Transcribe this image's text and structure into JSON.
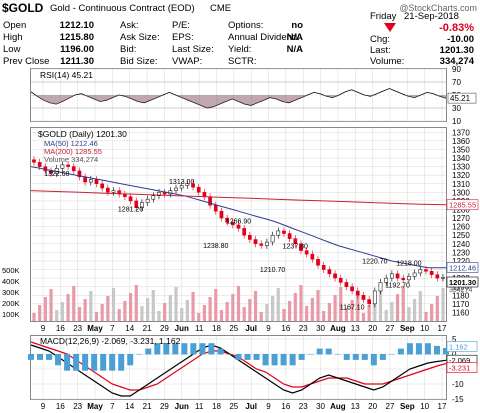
{
  "header": {
    "symbol": "$GOLD",
    "name": "Gold - Continuous Contract (EOD)",
    "exchange": "CME",
    "watermark": "@StockCharts.com",
    "date_day": "Friday",
    "date": "21-Sep-2018",
    "change_pct": "-0.83%",
    "quote_left": [
      {
        "label": "Open",
        "value": "1212.10"
      },
      {
        "label": "High",
        "value": "1215.80"
      },
      {
        "label": "Low",
        "value": "1196.00"
      },
      {
        "label": "Prev Close",
        "value": "1211.30"
      }
    ],
    "quote_mid": [
      {
        "label": "Ask:",
        "value": ""
      },
      {
        "label": "Ask Size:",
        "value": ""
      },
      {
        "label": "Bid:",
        "value": ""
      },
      {
        "label": "Bid Size:",
        "value": ""
      }
    ],
    "quote_mid2": [
      {
        "label": "P/E:",
        "value": ""
      },
      {
        "label": "EPS:",
        "value": ""
      },
      {
        "label": "Last Size:",
        "value": ""
      },
      {
        "label": "VWAP:",
        "value": ""
      }
    ],
    "quote_mid3": [
      {
        "label": "Options:",
        "value": "no"
      },
      {
        "label": "Annual Dividend:",
        "value": "N/A"
      },
      {
        "label": "Yield:",
        "value": "N/A"
      },
      {
        "label": "SCTR:",
        "value": ""
      }
    ],
    "quote_right": [
      {
        "label": "Chg:",
        "value": "-10.00"
      },
      {
        "label": "Last:",
        "value": "1201.30"
      },
      {
        "label": "Volume:",
        "value": "334,274"
      }
    ]
  },
  "chart_data": [
    {
      "panel": "rsi",
      "type": "line",
      "legend": "RSI(14) 45.21",
      "last_value": "45.21",
      "ylim": [
        10,
        90
      ],
      "ticks": [
        "90",
        "70",
        "50",
        "30",
        "10"
      ],
      "series": [
        {
          "name": "RSI(14)",
          "values": [
            55,
            48,
            42,
            38,
            36,
            40,
            45,
            50,
            52,
            48,
            44,
            40,
            42,
            46,
            50,
            48,
            44,
            40,
            38,
            42,
            46,
            50,
            54,
            50,
            46,
            42,
            38,
            34,
            30,
            32,
            36,
            40,
            44,
            40,
            36,
            34,
            38,
            42,
            46,
            44,
            40,
            38,
            42,
            46,
            50,
            54,
            52,
            48,
            46,
            50,
            55,
            58,
            54,
            50,
            48,
            52,
            56,
            60,
            56,
            52,
            48,
            46,
            50,
            54,
            52,
            48,
            45
          ]
        }
      ]
    },
    {
      "panel": "price",
      "type": "line",
      "legend": [
        "$GOLD (Daily) 1201.30",
        "MA(50) 1212.46",
        "MA(200) 1285.55",
        "Volume 334,274"
      ],
      "ylim": [
        1150,
        1375
      ],
      "yticks": [
        "1370",
        "1360",
        "1350",
        "1340",
        "1330",
        "1320",
        "1310",
        "1300",
        "1290",
        "1280",
        "1270",
        "1260",
        "1250",
        "1240",
        "1230",
        "1220",
        "1210",
        "1200",
        "1190",
        "1180",
        "1170",
        "1160"
      ],
      "volume_ticks": [
        "500K",
        "400K",
        "300K",
        "200K",
        "100K"
      ],
      "right_labels": [
        "1285.55",
        "1212.46",
        "1201.30",
        "334274"
      ],
      "annotations": [
        {
          "text": "1322.60",
          "x": "Apr 11",
          "y": 1322.6
        },
        {
          "text": "1313.00",
          "x": "Jun 14",
          "y": 1313.0
        },
        {
          "text": "1281.20",
          "x": "May 21",
          "y": 1281.2
        },
        {
          "text": "1266.90",
          "x": "Jul 9",
          "y": 1266.9
        },
        {
          "text": "1238.80",
          "x": "Jul 2",
          "y": 1238.8
        },
        {
          "text": "1237.80",
          "x": "Jul 30",
          "y": 1237.8
        },
        {
          "text": "1220.70",
          "x": "Aug 28",
          "y": 1220.7
        },
        {
          "text": "1218.00",
          "x": "Sep 10",
          "y": 1218.0
        },
        {
          "text": "1210.70",
          "x": "Jul 23",
          "y": 1210.7
        },
        {
          "text": "1192.70",
          "x": "Sep 5",
          "y": 1192.7
        },
        {
          "text": "1167.10",
          "x": "Aug 16",
          "y": 1167.1
        }
      ],
      "series": [
        {
          "name": "$GOLD",
          "values": [
            1335,
            1330,
            1325,
            1322,
            1328,
            1332,
            1330,
            1325,
            1318,
            1312,
            1315,
            1310,
            1305,
            1300,
            1302,
            1298,
            1295,
            1290,
            1282,
            1288,
            1292,
            1296,
            1300,
            1298,
            1302,
            1305,
            1308,
            1310,
            1306,
            1300,
            1295,
            1285,
            1278,
            1270,
            1265,
            1262,
            1258,
            1250,
            1245,
            1240,
            1238,
            1242,
            1250,
            1255,
            1252,
            1246,
            1240,
            1232,
            1228,
            1222,
            1215,
            1210,
            1205,
            1200,
            1195,
            1190,
            1185,
            1180,
            1175,
            1170,
            1185,
            1195,
            1200,
            1205,
            1200,
            1198,
            1202,
            1206,
            1210,
            1208,
            1204,
            1200,
            1201
          ]
        },
        {
          "name": "MA(50)",
          "values": [
            1330,
            1328,
            1326,
            1324,
            1322,
            1320,
            1318,
            1316,
            1314,
            1312,
            1310,
            1308,
            1306,
            1304,
            1302,
            1300,
            1298,
            1296,
            1293,
            1290,
            1287,
            1284,
            1281,
            1278,
            1275,
            1272,
            1269,
            1266,
            1262,
            1258,
            1254,
            1250,
            1246,
            1242,
            1238,
            1235,
            1232,
            1229,
            1226,
            1223,
            1220,
            1218,
            1216,
            1214,
            1212,
            1212,
            1212
          ]
        },
        {
          "name": "MA(200)",
          "values": [
            1302,
            1301,
            1300,
            1299,
            1298,
            1297,
            1296,
            1295,
            1294,
            1293,
            1292,
            1291,
            1290,
            1289,
            1288,
            1287,
            1286,
            1285.5
          ]
        }
      ]
    },
    {
      "panel": "macd",
      "type": "line",
      "legend": "MACD(12,26,9) -2.069, -3.231, 1.162",
      "right_labels": [
        "1.162",
        "-2.069",
        "-3.231"
      ],
      "ylim": [
        -15,
        6
      ],
      "ticks": [
        "5",
        "0",
        "-5",
        "-10",
        "-15"
      ],
      "series": [
        {
          "name": "MACD",
          "values": [
            3,
            2,
            1,
            -1,
            -3,
            -5,
            -7,
            -9,
            -11,
            -13,
            -14,
            -14,
            -12,
            -10,
            -8,
            -6,
            -4,
            -2,
            0,
            2,
            3,
            2,
            0,
            -2,
            -4,
            -6,
            -8,
            -10,
            -12,
            -13,
            -12,
            -10,
            -8,
            -7,
            -8,
            -9,
            -10,
            -11,
            -12,
            -11,
            -9,
            -7,
            -5,
            -4,
            -3,
            -2.5,
            -2.1
          ]
        },
        {
          "name": "Signal",
          "values": [
            4,
            3,
            2,
            1,
            0,
            -2,
            -4,
            -6,
            -8,
            -10,
            -11,
            -12,
            -12,
            -11,
            -10,
            -8,
            -6,
            -4,
            -2,
            0,
            1,
            1,
            0,
            -1,
            -3,
            -5,
            -6,
            -8,
            -10,
            -11,
            -11,
            -10,
            -9,
            -8,
            -8,
            -8,
            -9,
            -10,
            -10,
            -10,
            -9,
            -8,
            -7,
            -6,
            -5,
            -4,
            -3.2
          ]
        }
      ]
    }
  ],
  "x_axis": {
    "labels": [
      {
        "t": "9",
        "bold": false
      },
      {
        "t": "16",
        "bold": false
      },
      {
        "t": "23",
        "bold": false
      },
      {
        "t": "May",
        "bold": true
      },
      {
        "t": "7",
        "bold": false
      },
      {
        "t": "14",
        "bold": false
      },
      {
        "t": "21",
        "bold": false
      },
      {
        "t": "29",
        "bold": false
      },
      {
        "t": "Jun",
        "bold": true
      },
      {
        "t": "11",
        "bold": false
      },
      {
        "t": "18",
        "bold": false
      },
      {
        "t": "25",
        "bold": false
      },
      {
        "t": "Jul",
        "bold": true
      },
      {
        "t": "9",
        "bold": false
      },
      {
        "t": "16",
        "bold": false
      },
      {
        "t": "23",
        "bold": false
      },
      {
        "t": "30",
        "bold": false
      },
      {
        "t": "Aug",
        "bold": true
      },
      {
        "t": "13",
        "bold": false
      },
      {
        "t": "20",
        "bold": false
      },
      {
        "t": "27",
        "bold": false
      },
      {
        "t": "Sep",
        "bold": true
      },
      {
        "t": "10",
        "bold": false
      },
      {
        "t": "17",
        "bold": false
      }
    ]
  },
  "colors": {
    "up": "#ffffff",
    "down": "#e0001b",
    "ma50": "#2b3d8f",
    "ma200": "#c8203a",
    "rsi": "#000000",
    "macd_hist": "#4a9fd4",
    "grid": "#d8d8d8"
  }
}
